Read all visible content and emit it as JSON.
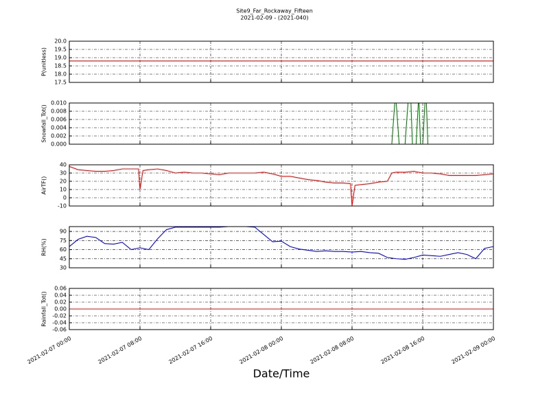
{
  "chart_data": {
    "type": "line",
    "title": "Site9_Far_Rockaway_Fifteen",
    "subtitle": "2021-02-09 - (2021-040)",
    "x_label": "Date/Time",
    "xlim": [
      "2021-02-07 00:00",
      "2021-02-09 00:00"
    ],
    "xticks": [
      "2021-02-07 00:00",
      "2021-02-07 08:00",
      "2021-02-07 16:00",
      "2021-02-08 00:00",
      "2021-02-08 08:00",
      "2021-02-08 16:00",
      "2021-02-09 00:00"
    ],
    "grid": true,
    "panels": [
      {
        "y_label": "P(unitless)",
        "ylim": [
          17.5,
          20.0
        ],
        "yticks": [
          17.5,
          {
            "value": 18,
            "label": "18.0"
          },
          18.5,
          {
            "value": 19,
            "label": "19.0"
          },
          19.5,
          {
            "value": 20,
            "label": "20.0"
          }
        ],
        "series": [
          {
            "color": "#ff0000",
            "x": [
              "2021-02-07 00:00",
              "2021-02-09 00:00"
            ],
            "values": [
              18.8,
              18.8
            ]
          }
        ]
      },
      {
        "y_label": "Snowfall_Tot()",
        "ylim": [
          0,
          0.01
        ],
        "yticks": [
          {
            "value": 0,
            "label": "0.000"
          },
          {
            "value": 0.002,
            "label": "0.002"
          },
          {
            "value": 0.004,
            "label": "0.004"
          },
          {
            "value": 0.006,
            "label": "0.006"
          },
          {
            "value": 0.008,
            "label": "0.008"
          },
          {
            "value": 0.01,
            "label": "0.010"
          }
        ],
        "series": [
          {
            "color": "#008000",
            "x": [
              "2021-02-07 00:00",
              "2021-02-08 12:30",
              "2021-02-08 12:50",
              "2021-02-08 13:00",
              "2021-02-08 13:20",
              "2021-02-08 14:00",
              "2021-02-08 14:20",
              "2021-02-08 14:40",
              "2021-02-08 14:50",
              "2021-02-08 15:15",
              "2021-02-08 15:30",
              "2021-02-08 15:35",
              "2021-02-08 15:45",
              "2021-02-08 16:00",
              "2021-02-08 16:15",
              "2021-02-08 16:25",
              "2021-02-08 16:35",
              "2021-02-09 00:00"
            ],
            "values": [
              0,
              0,
              0.01,
              0.01,
              0,
              0,
              0.01,
              0.01,
              0,
              0,
              0.01,
              0.01,
              0,
              0,
              0.01,
              0.01,
              0,
              0
            ]
          }
        ]
      },
      {
        "y_label": "AirTF()",
        "ylim": [
          -10,
          40
        ],
        "yticks": [
          -10,
          0,
          10,
          20,
          30,
          40
        ],
        "series": [
          {
            "color": "#ff0000",
            "x": [
              "2021-02-07 00:00",
              "2021-02-07 01:00",
              "2021-02-07 02:00",
              "2021-02-07 03:00",
              "2021-02-07 04:00",
              "2021-02-07 05:00",
              "2021-02-07 06:00",
              "2021-02-07 07:00",
              "2021-02-07 07:50",
              "2021-02-07 08:00",
              "2021-02-07 08:20",
              "2021-02-07 09:00",
              "2021-02-07 10:00",
              "2021-02-07 11:00",
              "2021-02-07 12:00",
              "2021-02-07 13:00",
              "2021-02-07 14:00",
              "2021-02-07 15:00",
              "2021-02-07 16:00",
              "2021-02-07 17:00",
              "2021-02-07 18:00",
              "2021-02-07 19:00",
              "2021-02-07 20:00",
              "2021-02-07 21:00",
              "2021-02-07 22:00",
              "2021-02-07 23:00",
              "2021-02-08 00:00",
              "2021-02-08 01:00",
              "2021-02-08 02:00",
              "2021-02-08 03:00",
              "2021-02-08 04:00",
              "2021-02-08 05:00",
              "2021-02-08 06:00",
              "2021-02-08 07:00",
              "2021-02-08 07:50",
              "2021-02-08 08:00",
              "2021-02-08 08:20",
              "2021-02-08 09:00",
              "2021-02-08 10:00",
              "2021-02-08 11:00",
              "2021-02-08 12:00",
              "2021-02-08 12:30",
              "2021-02-08 13:00",
              "2021-02-08 14:00",
              "2021-02-08 15:00",
              "2021-02-08 16:00",
              "2021-02-08 17:00",
              "2021-02-08 18:00",
              "2021-02-08 19:00",
              "2021-02-08 20:00",
              "2021-02-08 21:00",
              "2021-02-08 22:00",
              "2021-02-08 23:00",
              "2021-02-09 00:00"
            ],
            "values": [
              38,
              34,
              33,
              32,
              32,
              33,
              35,
              35,
              35,
              10,
              33,
              34,
              35,
              33,
              30,
              31,
              30,
              30,
              29,
              28,
              30,
              30,
              30,
              30,
              31,
              29,
              26,
              26,
              24,
              22,
              21,
              19,
              18,
              18,
              17,
              -10,
              15,
              16,
              17,
              19,
              20,
              30,
              31,
              31,
              32,
              30,
              30,
              29,
              27,
              27,
              27,
              27,
              28,
              29
            ]
          }
        ]
      },
      {
        "y_label": "RH(%)",
        "ylim": [
          30,
          98
        ],
        "yticks": [
          30,
          45,
          60,
          75,
          90
        ],
        "series": [
          {
            "color": "#0000ff",
            "x": [
              "2021-02-07 00:00",
              "2021-02-07 01:00",
              "2021-02-07 02:00",
              "2021-02-07 03:00",
              "2021-02-07 04:00",
              "2021-02-07 05:00",
              "2021-02-07 06:00",
              "2021-02-07 07:00",
              "2021-02-07 08:00",
              "2021-02-07 09:00",
              "2021-02-07 10:00",
              "2021-02-07 11:00",
              "2021-02-07 12:00",
              "2021-02-07 13:00",
              "2021-02-07 14:00",
              "2021-02-07 15:00",
              "2021-02-07 16:00",
              "2021-02-07 17:00",
              "2021-02-07 18:00",
              "2021-02-07 19:00",
              "2021-02-07 20:00",
              "2021-02-07 21:00",
              "2021-02-07 22:00",
              "2021-02-07 23:00",
              "2021-02-08 00:00",
              "2021-02-08 01:00",
              "2021-02-08 02:00",
              "2021-02-08 03:00",
              "2021-02-08 04:00",
              "2021-02-08 05:00",
              "2021-02-08 06:00",
              "2021-02-08 07:00",
              "2021-02-08 08:00",
              "2021-02-08 09:00",
              "2021-02-08 10:00",
              "2021-02-08 11:00",
              "2021-02-08 12:00",
              "2021-02-08 13:00",
              "2021-02-08 14:00",
              "2021-02-08 15:00",
              "2021-02-08 16:00",
              "2021-02-08 17:00",
              "2021-02-08 18:00",
              "2021-02-08 19:00",
              "2021-02-08 20:00",
              "2021-02-08 21:00",
              "2021-02-08 22:00",
              "2021-02-08 23:00",
              "2021-02-09 00:00"
            ],
            "values": [
              65,
              77,
              82,
              80,
              70,
              69,
              72,
              60,
              63,
              60,
              78,
              93,
              97,
              97,
              97,
              97,
              97,
              97,
              98,
              98,
              98,
              97,
              85,
              73,
              74,
              65,
              61,
              59,
              57,
              58,
              57,
              57,
              56,
              57,
              55,
              54,
              47,
              45,
              44,
              47,
              51,
              50,
              49,
              52,
              55,
              52,
              45,
              62,
              65
            ]
          }
        ]
      },
      {
        "y_label": "Rainfall_Tot()",
        "ylim": [
          -0.06,
          0.06
        ],
        "yticks": [
          -0.06,
          -0.04,
          -0.02,
          {
            "value": 0,
            "label": "0.00"
          },
          0.02,
          0.04,
          0.06
        ],
        "series": [
          {
            "color": "#ff0000",
            "x": [
              "2021-02-07 00:00",
              "2021-02-09 00:00"
            ],
            "values": [
              0,
              0
            ]
          }
        ]
      }
    ]
  }
}
